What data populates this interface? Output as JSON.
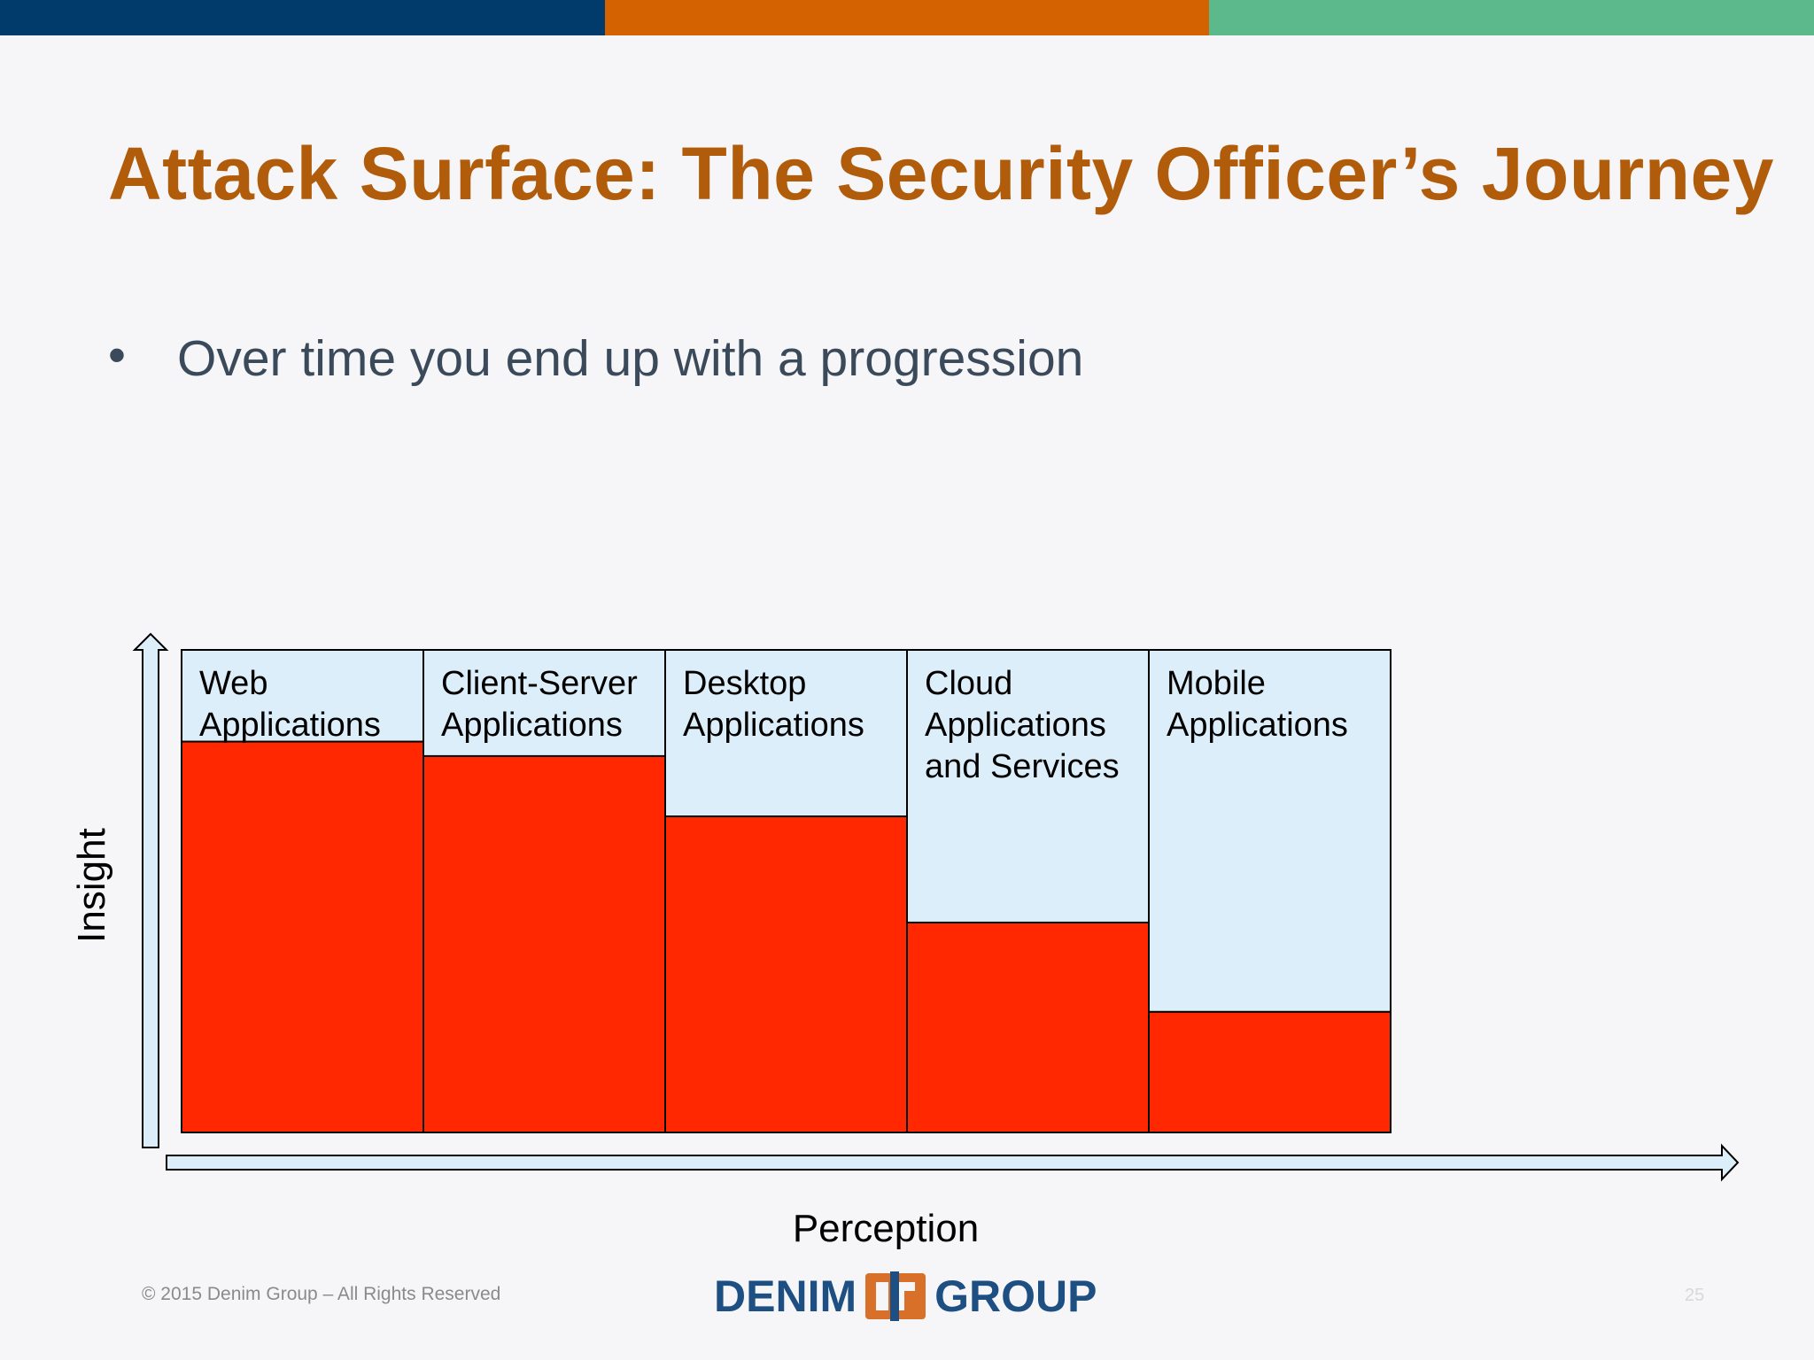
{
  "colors": {
    "bar_blue": "#013b6c",
    "bar_orange": "#d46200",
    "bar_green": "#5cb98c",
    "title": "#b05c0a",
    "insight_fill": "#ff2800",
    "box_fill": "#ddeefb",
    "logo_blue": "#1d4f82",
    "logo_orange": "#d8702a"
  },
  "slide": {
    "title": "Attack Surface: The Security Officer’s Journey",
    "bullet": "•",
    "bullet_text": "Over time you end up with a progression"
  },
  "chart_data": {
    "type": "bar",
    "title": "",
    "xlabel": "Perception",
    "ylabel": "Insight",
    "ylim": [
      0,
      1
    ],
    "categories": [
      [
        "Web",
        "Applications"
      ],
      [
        "Client-Server",
        "Applications"
      ],
      [
        "Desktop",
        "Applications"
      ],
      [
        "Cloud",
        "Applications",
        "and Services"
      ],
      [
        "Mobile",
        "Applications"
      ]
    ],
    "values": [
      0.81,
      0.78,
      0.655,
      0.435,
      0.25
    ]
  },
  "footer": {
    "copyright": "© 2015 Denim Group – All Rights Reserved",
    "logo_left": "DENIM",
    "logo_right": "GROUP",
    "page_number": "25"
  }
}
